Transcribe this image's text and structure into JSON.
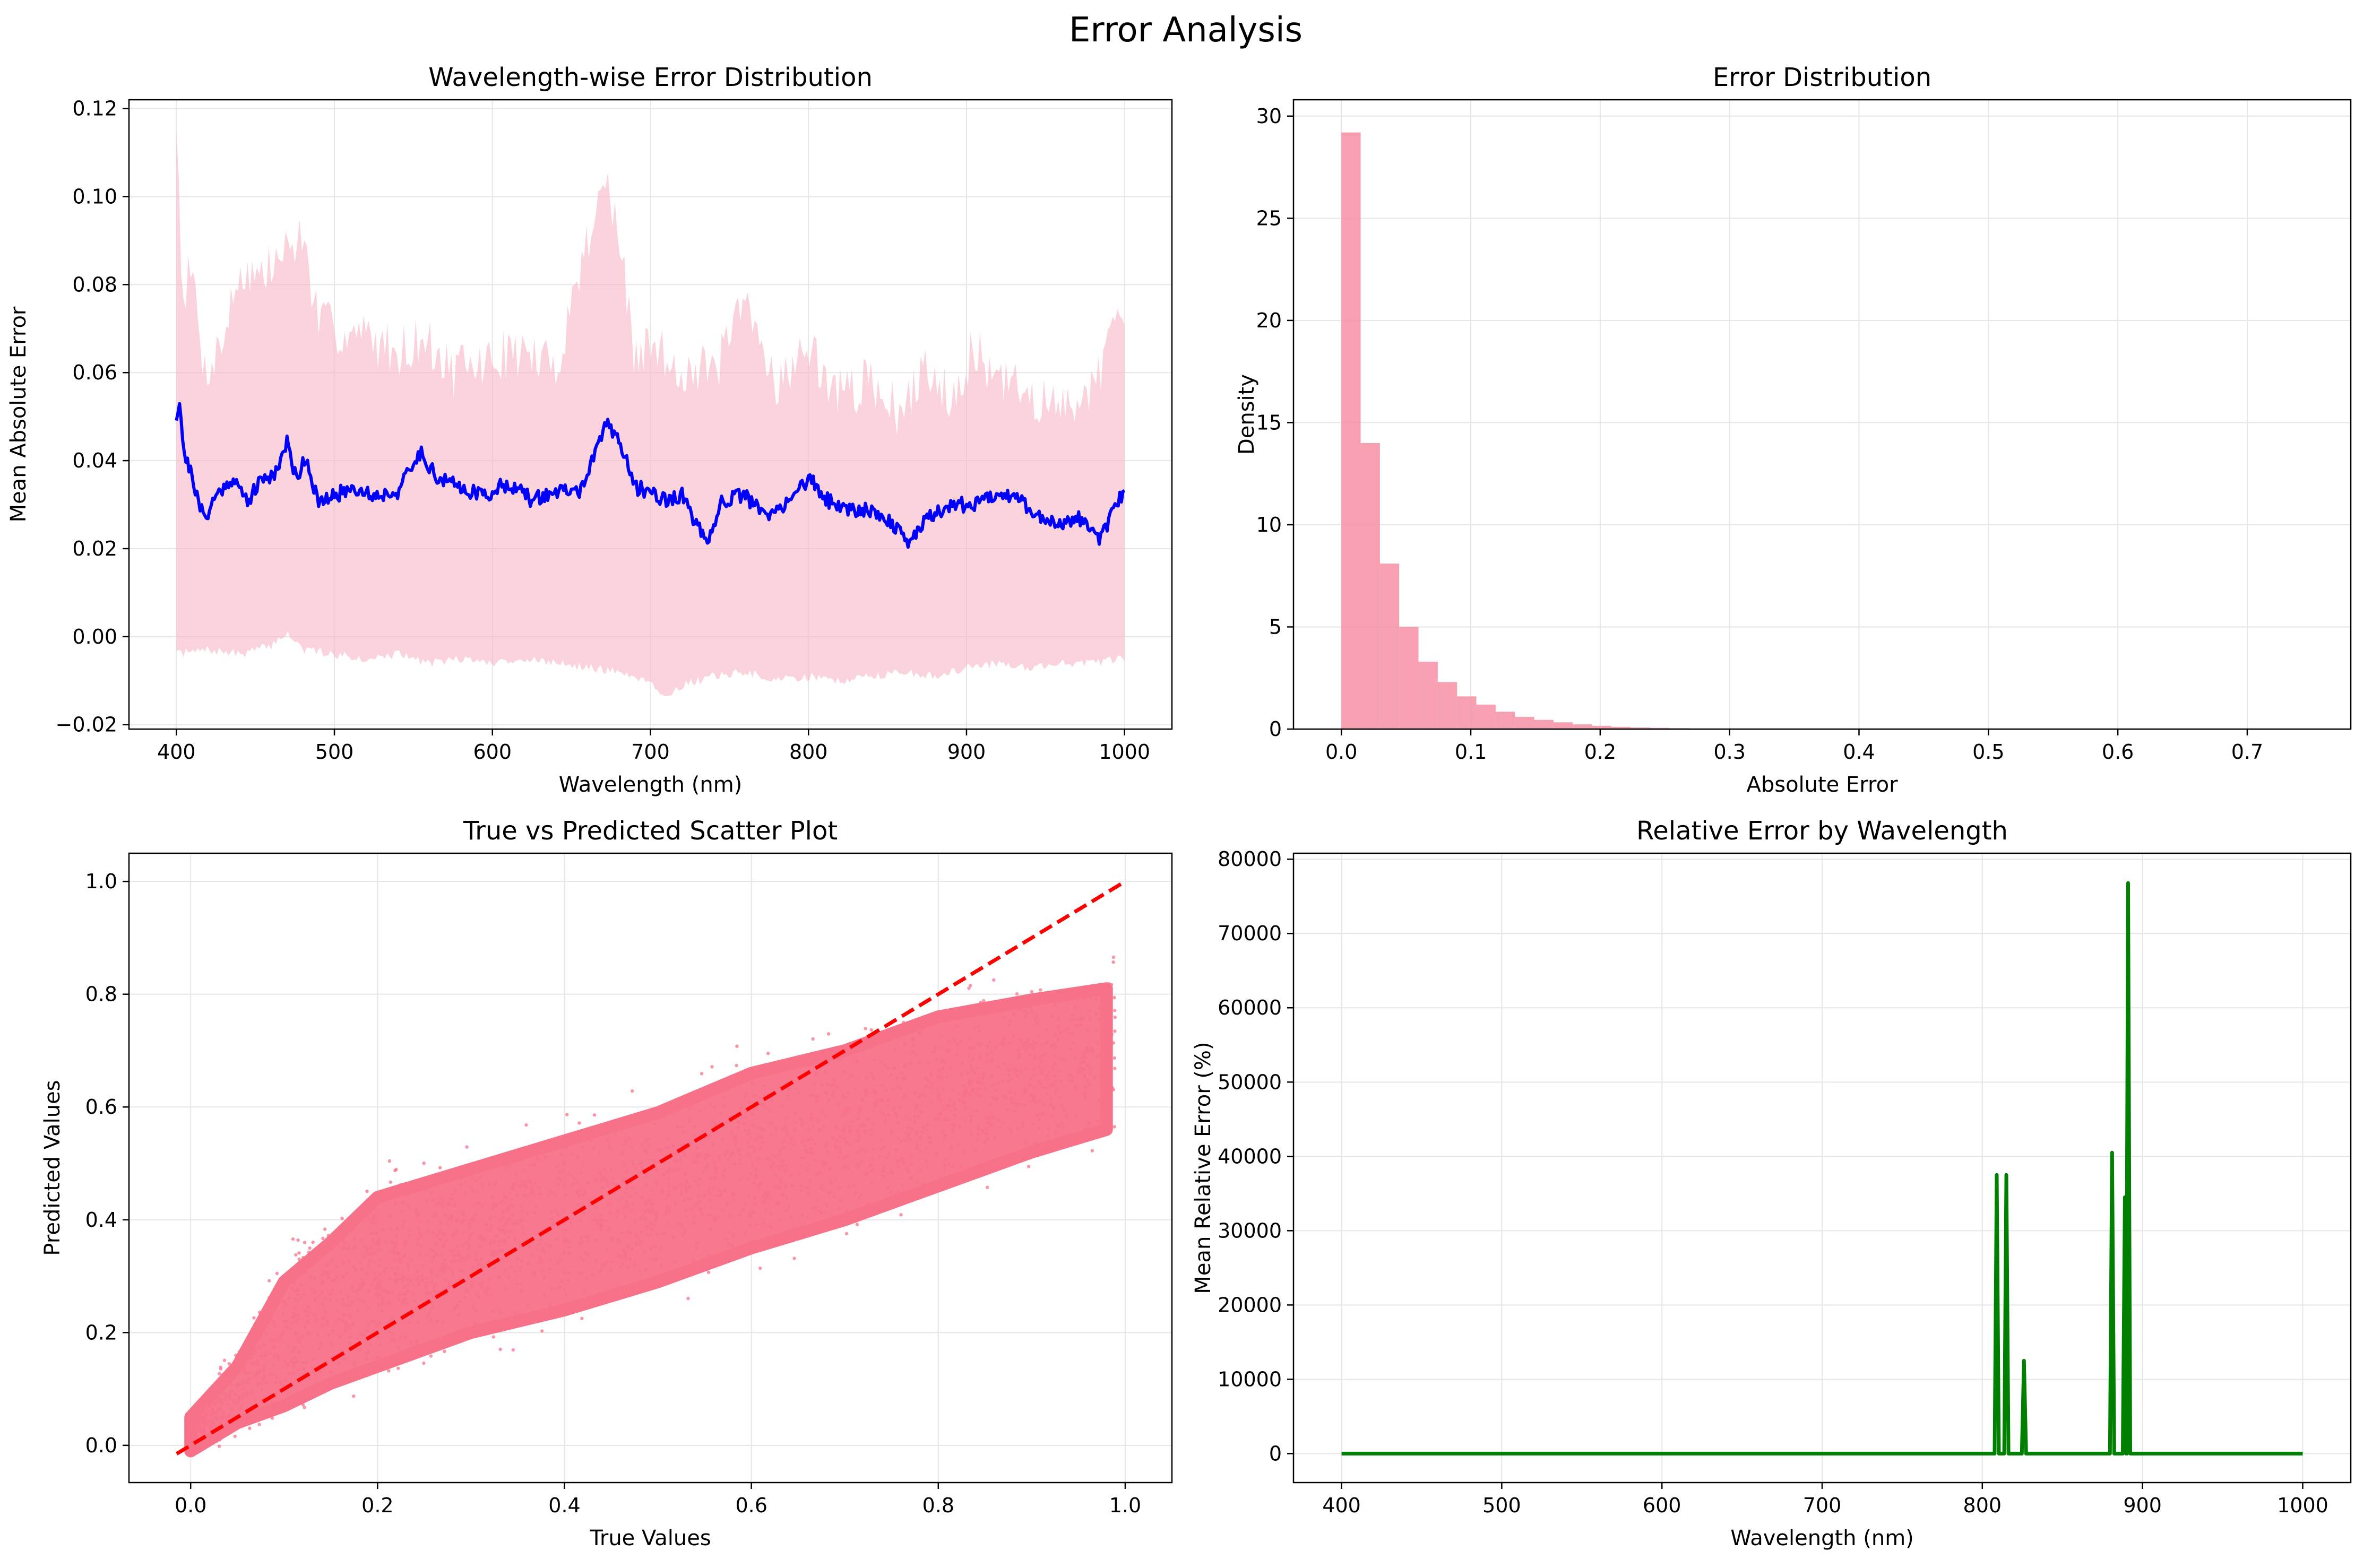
{
  "figure": {
    "suptitle": "Error Analysis"
  },
  "colors": {
    "mae_line": "#0000ff",
    "band_fill": "#f7b6c4",
    "hist_fill": "#f58fa3",
    "scatter": "#f77189",
    "diagonal": "#ff0000",
    "rel_line": "#008000",
    "grid": "#e6e6e6"
  },
  "chart_data": [
    {
      "id": "wavelength_error",
      "type": "line",
      "title": "Wavelength-wise Error Distribution",
      "xlabel": "Wavelength (nm)",
      "ylabel": "Mean Absolute Error",
      "xlim": [
        370,
        1030
      ],
      "ylim": [
        -0.021,
        0.122
      ],
      "xticks": [
        400,
        500,
        600,
        700,
        800,
        900,
        1000
      ],
      "yticks": [
        -0.02,
        0.0,
        0.02,
        0.04,
        0.06,
        0.08,
        0.1,
        0.12
      ],
      "ytick_labels": [
        "−0.02",
        "0.00",
        "0.02",
        "0.04",
        "0.06",
        "0.08",
        "0.10",
        "0.12"
      ],
      "grid": true,
      "series": [
        {
          "role": "mean",
          "x": [
            400,
            402,
            404,
            406,
            410,
            414,
            418,
            425,
            435,
            445,
            455,
            462,
            470,
            476,
            482,
            490,
            500,
            512,
            525,
            540,
            555,
            565,
            580,
            595,
            610,
            625,
            640,
            655,
            665,
            672,
            680,
            690,
            700,
            710,
            720,
            730,
            736,
            745,
            760,
            775,
            790,
            800,
            812,
            825,
            840,
            855,
            862,
            875,
            890,
            905,
            920,
            935,
            945,
            960,
            975,
            985,
            995,
            1000
          ],
          "y": [
            0.05,
            0.054,
            0.045,
            0.04,
            0.037,
            0.03,
            0.027,
            0.032,
            0.036,
            0.031,
            0.036,
            0.037,
            0.044,
            0.036,
            0.041,
            0.03,
            0.032,
            0.034,
            0.032,
            0.033,
            0.042,
            0.036,
            0.034,
            0.032,
            0.035,
            0.031,
            0.033,
            0.033,
            0.041,
            0.049,
            0.045,
            0.034,
            0.033,
            0.031,
            0.032,
            0.025,
            0.02,
            0.031,
            0.032,
            0.027,
            0.032,
            0.036,
            0.031,
            0.029,
            0.029,
            0.025,
            0.021,
            0.027,
            0.03,
            0.03,
            0.033,
            0.031,
            0.027,
            0.026,
            0.027,
            0.022,
            0.03,
            0.033
          ]
        },
        {
          "role": "band_upper",
          "x": [
            400,
            404,
            410,
            418,
            430,
            440,
            455,
            470,
            480,
            490,
            500,
            520,
            540,
            555,
            575,
            595,
            615,
            640,
            660,
            670,
            675,
            680,
            690,
            700,
            720,
            740,
            760,
            780,
            800,
            820,
            840,
            860,
            875,
            890,
            905,
            920,
            940,
            960,
            980,
            1000
          ],
          "y": [
            0.118,
            0.078,
            0.083,
            0.06,
            0.068,
            0.083,
            0.082,
            0.088,
            0.091,
            0.071,
            0.07,
            0.068,
            0.065,
            0.068,
            0.06,
            0.062,
            0.065,
            0.061,
            0.09,
            0.104,
            0.099,
            0.09,
            0.063,
            0.066,
            0.061,
            0.06,
            0.075,
            0.058,
            0.065,
            0.055,
            0.058,
            0.05,
            0.062,
            0.055,
            0.065,
            0.058,
            0.055,
            0.051,
            0.058,
            0.073
          ]
        },
        {
          "role": "band_lower",
          "x": [
            400,
            420,
            440,
            460,
            470,
            480,
            500,
            520,
            540,
            560,
            580,
            600,
            620,
            640,
            660,
            680,
            700,
            710,
            720,
            740,
            760,
            780,
            800,
            820,
            840,
            860,
            880,
            900,
            920,
            940,
            960,
            980,
            1000
          ],
          "y": [
            -0.004,
            -0.003,
            -0.004,
            -0.002,
            0.001,
            -0.003,
            -0.004,
            -0.005,
            -0.004,
            -0.006,
            -0.005,
            -0.006,
            -0.005,
            -0.006,
            -0.007,
            -0.008,
            -0.01,
            -0.014,
            -0.011,
            -0.009,
            -0.008,
            -0.01,
            -0.009,
            -0.01,
            -0.009,
            -0.008,
            -0.009,
            -0.007,
            -0.006,
            -0.007,
            -0.006,
            -0.006,
            -0.005
          ]
        }
      ]
    },
    {
      "id": "error_hist",
      "type": "bar",
      "title": "Error Distribution",
      "xlabel": "Absolute Error",
      "ylabel": "Density",
      "xlim": [
        -0.037,
        0.78
      ],
      "ylim": [
        0,
        30.8
      ],
      "xticks": [
        0.0,
        0.1,
        0.2,
        0.3,
        0.4,
        0.5,
        0.6,
        0.7
      ],
      "xtick_labels": [
        "0.0",
        "0.1",
        "0.2",
        "0.3",
        "0.4",
        "0.5",
        "0.6",
        "0.7"
      ],
      "yticks": [
        0,
        5,
        10,
        15,
        20,
        25,
        30
      ],
      "grid": true,
      "bin_width": 0.0149,
      "bin_start": 0.0,
      "values": [
        29.2,
        14.0,
        8.1,
        5.0,
        3.3,
        2.3,
        1.6,
        1.2,
        0.85,
        0.6,
        0.45,
        0.33,
        0.23,
        0.16,
        0.11,
        0.08,
        0.06,
        0.04,
        0.025,
        0.015,
        0.01
      ]
    },
    {
      "id": "true_vs_pred",
      "type": "scatter",
      "title": "True vs Predicted Scatter Plot",
      "xlabel": "True Values",
      "ylabel": "Predicted Values",
      "xlim": [
        -0.066,
        1.05
      ],
      "ylim": [
        -0.066,
        1.05
      ],
      "xticks": [
        0.0,
        0.2,
        0.4,
        0.6,
        0.8,
        1.0
      ],
      "xtick_labels": [
        "0.0",
        "0.2",
        "0.4",
        "0.6",
        "0.8",
        "1.0"
      ],
      "yticks": [
        0.0,
        0.2,
        0.4,
        0.6,
        0.8,
        1.0
      ],
      "ytick_labels": [
        "0.0",
        "0.2",
        "0.4",
        "0.6",
        "0.8",
        "1.0"
      ],
      "grid": true,
      "diagonal": {
        "x": [
          -0.015,
          1.0
        ],
        "y": [
          -0.015,
          1.0
        ]
      },
      "density_envelope": {
        "x": [
          0.0,
          0.05,
          0.1,
          0.15,
          0.2,
          0.3,
          0.4,
          0.5,
          0.6,
          0.7,
          0.8,
          0.9,
          0.98
        ],
        "y_low": [
          -0.01,
          0.0,
          0.03,
          0.07,
          0.1,
          0.16,
          0.2,
          0.25,
          0.31,
          0.36,
          0.42,
          0.48,
          0.52
        ],
        "y_high": [
          0.05,
          0.2,
          0.35,
          0.42,
          0.5,
          0.55,
          0.6,
          0.65,
          0.72,
          0.76,
          0.82,
          0.85,
          0.87
        ]
      }
    },
    {
      "id": "relative_error",
      "type": "line",
      "title": "Relative Error by Wavelength",
      "xlabel": "Wavelength (nm)",
      "ylabel": "Mean Relative Error (%)",
      "xlim": [
        370,
        1030
      ],
      "ylim": [
        -3900,
        80800
      ],
      "xticks": [
        400,
        500,
        600,
        700,
        800,
        900,
        1000
      ],
      "yticks": [
        0,
        10000,
        20000,
        30000,
        40000,
        50000,
        60000,
        70000,
        80000
      ],
      "grid": true,
      "baseline_range": [
        400,
        1000
      ],
      "spikes": [
        {
          "x": 809,
          "y": 37500
        },
        {
          "x": 815,
          "y": 37500
        },
        {
          "x": 826,
          "y": 12500
        },
        {
          "x": 881,
          "y": 40500
        },
        {
          "x": 889,
          "y": 34500
        },
        {
          "x": 891,
          "y": 76800
        }
      ]
    }
  ]
}
